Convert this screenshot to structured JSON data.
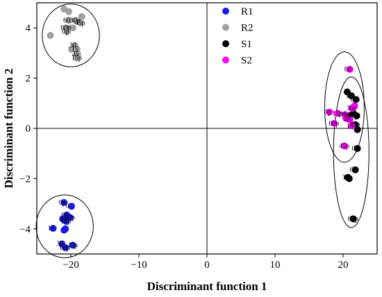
{
  "chart_data": {
    "type": "scatter",
    "xlabel": "Discriminant function 1",
    "ylabel": "Discriminant function 2",
    "xlim": [
      -25,
      25
    ],
    "ylim": [
      -5,
      5
    ],
    "xticks": [
      -20,
      -10,
      0,
      10,
      20
    ],
    "yticks": [
      -4,
      -2,
      0,
      2,
      4
    ],
    "grid": false,
    "reference_lines": {
      "x": 0,
      "y": 0
    },
    "legend_position": "top-center",
    "series": [
      {
        "name": "R1",
        "color": "#1a1ae6",
        "points": [
          {
            "x": -21.0,
            "y": -2.95,
            "label": "0p"
          },
          {
            "x": -19.9,
            "y": -3.1,
            "label": "0"
          },
          {
            "x": -20.6,
            "y": -3.45,
            "label": "60"
          },
          {
            "x": -20.1,
            "y": -3.55,
            "label": "30p"
          },
          {
            "x": -20.8,
            "y": -3.65,
            "label": "45"
          },
          {
            "x": -21.2,
            "y": -3.6,
            "label": ""
          },
          {
            "x": -20.7,
            "y": -3.7,
            "label": "15p"
          },
          {
            "x": -22.6,
            "y": -3.98,
            "label": "15"
          },
          {
            "x": -21.0,
            "y": -4.05,
            "label": ""
          },
          {
            "x": -20.8,
            "y": -4.0,
            "label": ""
          },
          {
            "x": -21.3,
            "y": -4.6,
            "label": "30"
          },
          {
            "x": -20.8,
            "y": -4.75,
            "label": "60p"
          },
          {
            "x": -19.7,
            "y": -4.65,
            "label": "45p"
          }
        ]
      },
      {
        "name": "R2",
        "color": "#a0a0a0",
        "points": [
          {
            "x": -21.0,
            "y": 4.75,
            "label": ""
          },
          {
            "x": -20.3,
            "y": 4.65,
            "label": ""
          },
          {
            "x": -18.4,
            "y": 4.45,
            "label": ""
          },
          {
            "x": -20.3,
            "y": 4.3,
            "label": "60"
          },
          {
            "x": -19.3,
            "y": 4.3,
            "label": "30p"
          },
          {
            "x": -20.7,
            "y": 4.0,
            "label": "60p"
          },
          {
            "x": -18.6,
            "y": 4.2,
            "label": "45p"
          },
          {
            "x": -19.7,
            "y": 4.0,
            "label": "0"
          },
          {
            "x": -20.5,
            "y": 3.85,
            "label": "0p"
          },
          {
            "x": -23.0,
            "y": 3.7,
            "label": ""
          },
          {
            "x": -19.4,
            "y": 3.3,
            "label": "30"
          },
          {
            "x": -19.9,
            "y": 3.15,
            "label": ""
          },
          {
            "x": -19.1,
            "y": 3.15,
            "label": "15"
          },
          {
            "x": -19.0,
            "y": 2.95,
            "label": "45"
          },
          {
            "x": -19.1,
            "y": 2.8,
            "label": "15p"
          }
        ]
      },
      {
        "name": "S1",
        "color": "#000000",
        "points": [
          {
            "x": 20.6,
            "y": 1.45,
            "label": ""
          },
          {
            "x": 21.2,
            "y": 1.3,
            "label": "15"
          },
          {
            "x": 21.9,
            "y": 1.15,
            "label": "0p"
          },
          {
            "x": 20.9,
            "y": 0.5,
            "label": "30"
          },
          {
            "x": 21.5,
            "y": 0.6,
            "label": ""
          },
          {
            "x": 22.0,
            "y": 0.5,
            "label": "0p"
          },
          {
            "x": 21.8,
            "y": 0.15,
            "label": "45p"
          },
          {
            "x": 22.1,
            "y": -0.05,
            "label": ""
          },
          {
            "x": 22.1,
            "y": -0.8,
            "label": "0"
          },
          {
            "x": 21.8,
            "y": -1.65,
            "label": "60"
          },
          {
            "x": 20.7,
            "y": -1.95,
            "label": "15"
          },
          {
            "x": 20.9,
            "y": -2.0,
            "label": ""
          },
          {
            "x": 21.5,
            "y": -3.6,
            "label": "60p"
          }
        ]
      },
      {
        "name": "S2",
        "color": "#ff00ff",
        "points": [
          {
            "x": 21.0,
            "y": 2.35,
            "label": "60"
          },
          {
            "x": 18.0,
            "y": 0.65,
            "label": "0p"
          },
          {
            "x": 19.2,
            "y": 0.6,
            "label": "15p"
          },
          {
            "x": 20.3,
            "y": 0.55,
            "label": "30"
          },
          {
            "x": 21.3,
            "y": 0.8,
            "label": "30p"
          },
          {
            "x": 21.7,
            "y": 0.9,
            "label": ""
          },
          {
            "x": 21.0,
            "y": 0.35,
            "label": "45"
          },
          {
            "x": 20.4,
            "y": 0.4,
            "label": ""
          },
          {
            "x": 18.7,
            "y": 0.2,
            "label": "60p"
          },
          {
            "x": 21.3,
            "y": 0.1,
            "label": "15"
          },
          {
            "x": 20.2,
            "y": -0.7,
            "label": "45p"
          }
        ]
      }
    ],
    "ellipses": [
      {
        "group": "R2",
        "cx": -20.0,
        "cy": 3.7,
        "rx": 4.2,
        "ry": 1.25
      },
      {
        "group": "R1",
        "cx": -20.9,
        "cy": -3.9,
        "rx": 4.2,
        "ry": 1.25
      },
      {
        "group": "S2",
        "cx": 20.2,
        "cy": 0.85,
        "rx": 2.9,
        "ry": 2.2
      },
      {
        "group": "S1",
        "cx": 21.2,
        "cy": -0.95,
        "rx": 2.6,
        "ry": 3.0
      }
    ]
  }
}
